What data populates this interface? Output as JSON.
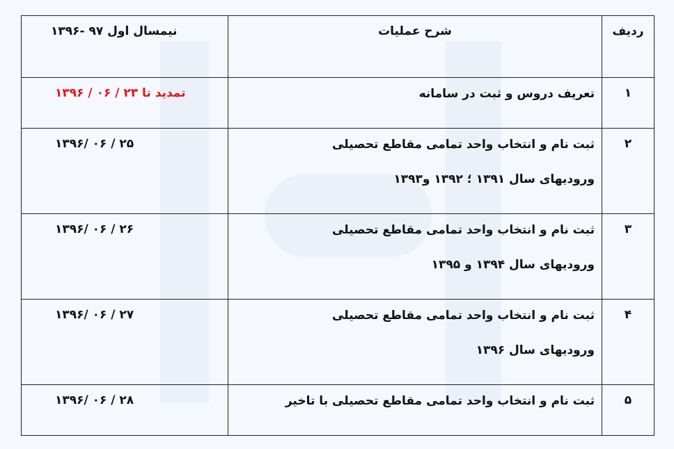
{
  "header": {
    "row": "ردیف",
    "description": "شرح عملیات",
    "semester": "نیمسال اول ۹۷ -۱۳۹۶"
  },
  "rows": [
    {
      "num": "۱",
      "lines": [
        "تعریف دروس و ثبت در سامانه"
      ],
      "date": "تمدید تا ۲۳ / ۰۶ / ۱۳۹۶",
      "highlight": true
    },
    {
      "num": "۲",
      "lines": [
        "ثبت نام و انتخاب واحد تمامی مقاطع تحصیلی",
        "ورودیهای سال ۱۳۹۱ ؛ ۱۳۹۲ و۱۳۹۳"
      ],
      "date": "۱۳۹۶/ ۰۶ / ۲۵"
    },
    {
      "num": "۳",
      "lines": [
        "ثبت نام و انتخاب واحد تمامی مقاطع تحصیلی",
        "ورودیهای سال ۱۳۹۴ و ۱۳۹۵"
      ],
      "date": "۱۳۹۶/ ۰۶ / ۲۶"
    },
    {
      "num": "۴",
      "lines": [
        "ثبت نام و انتخاب واحد تمامی مقاطع تحصیلی",
        "ورودیهای سال ۱۳۹۶"
      ],
      "date": "۱۳۹۶/ ۰۶ / ۲۷"
    },
    {
      "num": "۵",
      "lines": [
        "ثبت نام و انتخاب واحد تمامی مقاطع تحصیلی  با تاخیر"
      ],
      "date": "۱۳۹۶/ ۰۶ / ۲۸"
    }
  ],
  "colors": {
    "highlight": "#e3151b",
    "text": "#111111",
    "background": "#f5f8fd"
  }
}
